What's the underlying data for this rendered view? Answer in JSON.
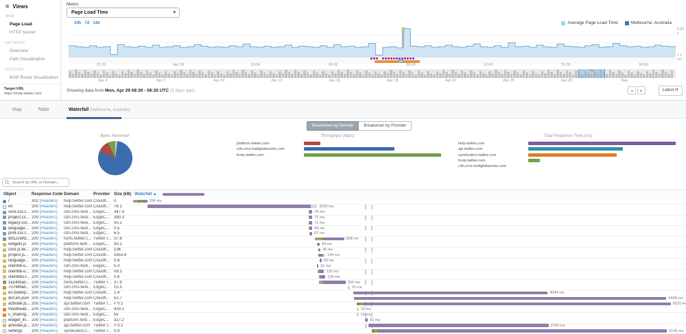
{
  "sidebar": {
    "title": "Views",
    "sections": [
      {
        "label": "WEB",
        "items": [
          {
            "label": "Page Load",
            "active": true
          },
          {
            "label": "HTTP Server",
            "active": false
          }
        ]
      },
      {
        "label": "NETWORK",
        "items": [
          {
            "label": "Overview",
            "active": false
          },
          {
            "label": "Path Visualization",
            "active": false
          }
        ]
      },
      {
        "label": "ROUTING",
        "items": [
          {
            "label": "BGP Route Visualization",
            "active": false
          }
        ]
      }
    ],
    "target_url_label": "Target URL",
    "target_url": "https://help.twitter.com"
  },
  "metric": {
    "label": "Metric",
    "value": "Page Load Time"
  },
  "time_ranges": [
    "24h",
    "7d",
    "14d"
  ],
  "legend": [
    {
      "label": "Average Page Load Time",
      "color": "#a9d1ec"
    },
    {
      "label": "Melbourne, Australia",
      "color": "#2f7dbe"
    }
  ],
  "timeline": {
    "y_max_label": "4.96 s",
    "y_min_label": "< 1 ms",
    "max_value": 4.96,
    "values": [
      1.9,
      1.7,
      1.6,
      1.9,
      1.6,
      1.7,
      0.3,
      2.1,
      1.7,
      1.6,
      1.8,
      1.6,
      2.0,
      1.6,
      1.7,
      1.9,
      1.6,
      1.7,
      2.1,
      1.8,
      1.6,
      1.7,
      1.6,
      1.9,
      1.7,
      2.2,
      1.7,
      1.6,
      1.8,
      1.6,
      1.7,
      2.0,
      1.6,
      1.8,
      1.7,
      1.6,
      1.9,
      1.6,
      2.1,
      1.7,
      1.8,
      1.6,
      1.7,
      2.3,
      0.2,
      1.6,
      1.7,
      1.5,
      4.96,
      1.8,
      1.7,
      1.9,
      1.6,
      1.7,
      2.0,
      1.7,
      1.6,
      1.8,
      2.2,
      1.7,
      1.6,
      1.9,
      1.6,
      2.4,
      1.7,
      1.8,
      1.6,
      2.0,
      1.7,
      1.6,
      2.2,
      1.8,
      1.7,
      1.6,
      1.9,
      2.1,
      1.6,
      1.7,
      2.3,
      1.9,
      1.7,
      1.8,
      1.6,
      1.7,
      2.0,
      1.8,
      1.7,
      1.9
    ],
    "spike_index": 48,
    "x_ticks": [
      {
        "label": "21:00",
        "f": 0.054
      },
      {
        "label": "Apr 29",
        "f": 0.181
      },
      {
        "label": "03:00",
        "f": 0.308
      },
      {
        "label": "06:00",
        "f": 0.436
      },
      {
        "label": "09:00",
        "f": 0.564
      },
      {
        "label": "12:00",
        "f": 0.691
      },
      {
        "label": "15:00",
        "f": 0.819
      },
      {
        "label": "18:00",
        "f": 0.947
      }
    ]
  },
  "overview": {
    "x_ticks": [
      {
        "label": "Apr 4",
        "f": 0.0565
      },
      {
        "label": "Apr 7",
        "f": 0.152
      },
      {
        "label": "Apr 10",
        "f": 0.2475
      },
      {
        "label": "Apr 13",
        "f": 0.3429
      },
      {
        "label": "Apr 16",
        "f": 0.4384
      },
      {
        "label": "Apr 19",
        "f": 0.5339
      },
      {
        "label": "Apr 22",
        "f": 0.6294
      },
      {
        "label": "Apr 25",
        "f": 0.7249
      },
      {
        "label": "Apr 28",
        "f": 0.8203
      },
      {
        "label": "May",
        "f": 0.9158
      }
    ],
    "selection": {
      "f": 0.8395,
      "w": 0.0418
    }
  },
  "status_line": {
    "prefix": "Showing data from ",
    "bold": "Mon, Apr 29 08:30 - 08:35 UTC",
    "suffix": " (3 days ago)"
  },
  "nav": {
    "prev": "◄",
    "next": "►",
    "latest": "Latest ⟳"
  },
  "tabs": [
    {
      "label": "Map",
      "suffix": "",
      "active": false,
      "x": 18
    },
    {
      "label": "Table",
      "suffix": "",
      "active": false,
      "x": 55
    },
    {
      "label": "Waterfall",
      "suffix": " (Melbourne, Australia)",
      "active": true,
      "x": 100
    }
  ],
  "breakdown": {
    "toggle": [
      {
        "label": "Breakdown by Domain",
        "active": true
      },
      {
        "label": "Breakdown by Provider",
        "active": false
      }
    ],
    "bytes": {
      "title": "Bytes Received",
      "slices": [
        {
          "pct": 2,
          "color": "#c9ced3"
        },
        {
          "pct": 80,
          "color": "#3c6cb0"
        },
        {
          "pct": 11,
          "color": "#b04a42"
        },
        {
          "pct": 7,
          "color": "#76a04a"
        }
      ]
    },
    "throughput": {
      "title": "Throughput (kbps)",
      "items": [
        {
          "label": "platform.twitter.com",
          "value": 12,
          "color": "#b04a42"
        },
        {
          "label": "cdn.cms-twdigitalassets.com",
          "value": 66,
          "color": "#3c6cb0"
        },
        {
          "label": "fonts.twitter.com",
          "value": 100,
          "color": "#76a04a"
        }
      ]
    },
    "response": {
      "title": "Total Response Time (ms)",
      "items": [
        {
          "label": "help.twitter.com",
          "value": 100,
          "color": "#7a5d9e"
        },
        {
          "label": "api.twitter.com",
          "value": 64,
          "color": "#3590b0"
        },
        {
          "label": "syndication.twitter.com",
          "value": 60,
          "color": "#de7f28"
        },
        {
          "label": "fonts.twitter.com",
          "value": 8,
          "color": "#76a04a"
        },
        {
          "label": "cdn.cms-twdigitalassets.com",
          "value": 0,
          "color": "#b04a42"
        }
      ]
    }
  },
  "search": {
    "placeholder": "Search by URL or Domain..."
  },
  "table": {
    "columns": [
      "Object",
      "Response Code",
      "Domain",
      "Provider",
      "Size (kB)",
      "Waterfall"
    ],
    "sort_arrow": "▲",
    "scale_total_ms": 11500,
    "dom_load_ms": 4823,
    "page_load_ms": 4951,
    "rows": [
      {
        "object": "/",
        "icon": "redirect",
        "code": "302",
        "headers": "[Headers]",
        "domain": "help.twitter.com",
        "provider": "Cloudfl...",
        "size": "0",
        "start": 0,
        "label": "296 ms",
        "phases": [
          [
            "tan",
            104
          ],
          [
            "green",
            44
          ],
          [
            "olive",
            30
          ],
          [
            "purple",
            118
          ]
        ]
      },
      {
        "object": "en",
        "icon": "doc",
        "code": "200",
        "headers": "[Headers]",
        "domain": "help.twitter.com",
        "provider": "Cloudfl...",
        "size": "76.1",
        "start": 300,
        "label": "3530 ms",
        "phases": [
          [
            "purple",
            3390
          ],
          [
            "light",
            140
          ]
        ]
      },
      {
        "object": "core.css.t...",
        "icon": "css",
        "code": "200",
        "headers": "[Headers]",
        "domain": "cdn.cms-twdi...",
        "provider": "EdgeC...",
        "size": "347.9",
        "start": 3653,
        "label": "75 ms",
        "phases": [
          [
            "tan",
            20
          ],
          [
            "purple",
            55
          ]
        ]
      },
      {
        "object": "project.cs...",
        "icon": "css",
        "code": "200",
        "headers": "[Headers]",
        "domain": "cdn.cms-twdi...",
        "provider": "EdgeC...",
        "size": "390.3",
        "start": 3653,
        "label": "75 ms",
        "phases": [
          [
            "tan",
            20
          ],
          [
            "purple",
            55
          ]
        ]
      },
      {
        "object": "legacy-col...",
        "icon": "css",
        "code": "200",
        "headers": "[Headers]",
        "domain": "cdn.cms-twdi...",
        "provider": "EdgeC...",
        "size": "50.1",
        "start": 3656,
        "label": "71 ms",
        "phases": [
          [
            "tan",
            18
          ],
          [
            "purple",
            53
          ]
        ]
      },
      {
        "object": "language...",
        "icon": "css",
        "code": "200",
        "headers": "[Headers]",
        "domain": "cdn.cms-twdi...",
        "provider": "EdgeC...",
        "size": "0.5",
        "start": 3658,
        "label": "69 ms",
        "phases": [
          [
            "tan",
            18
          ],
          [
            "purple",
            51
          ]
        ]
      },
      {
        "object": "print.css.t...",
        "icon": "css",
        "code": "200",
        "headers": "[Headers]",
        "domain": "cdn.cms-twdi...",
        "provider": "EdgeC...",
        "size": "6.5",
        "start": 3660,
        "label": "67 ms",
        "phases": [
          [
            "tan",
            17
          ],
          [
            "purple",
            50
          ]
        ]
      },
      {
        "object": "d9122wfd...",
        "icon": "font",
        "code": "200",
        "headers": "[Headers]",
        "domain": "fonts.twitter.com",
        "provider": "Twitter I...",
        "size": "37.8",
        "start": 3781,
        "label": "608 ms",
        "phases": [
          [
            "tan",
            100
          ],
          [
            "olive",
            60
          ],
          [
            "purple",
            448
          ]
        ]
      },
      {
        "object": "widgets.js",
        "icon": "js",
        "code": "200",
        "headers": "[Headers]",
        "domain": "platform.twitte...",
        "provider": "EdgeC...",
        "size": "93.1",
        "start": 3824,
        "label": "58 ms",
        "phases": [
          [
            "tan",
            15
          ],
          [
            "purple",
            43
          ]
        ]
      },
      {
        "object": "core.js.tw...",
        "icon": "js",
        "code": "200",
        "headers": "[Headers]",
        "domain": "help.twitter.com",
        "provider": "Cloudfl...",
        "size": "136",
        "start": 3852,
        "label": "46 ms",
        "phases": [
          [
            "purple",
            46
          ]
        ]
      },
      {
        "object": "project.js...",
        "icon": "js",
        "code": "200",
        "headers": "[Headers]",
        "domain": "help.twitter.com",
        "provider": "Cloudfl...",
        "size": "1653.6",
        "start": 3852,
        "label": "144 ms",
        "phases": [
          [
            "purple",
            100
          ],
          [
            "light",
            44
          ]
        ]
      },
      {
        "object": "language...",
        "icon": "js",
        "code": "200",
        "headers": "[Headers]",
        "domain": "help.twitter.com",
        "provider": "Cloudfl...",
        "size": "0.9",
        "start": 3881,
        "label": "40 ms",
        "phases": [
          [
            "purple",
            40
          ]
        ]
      },
      {
        "object": "clientlib-u...",
        "icon": "js",
        "code": "200",
        "headers": "[Headers]",
        "domain": "cdn.cms-twdi...",
        "provider": "EdgeC...",
        "size": "5.3",
        "start": 3824,
        "label": "31 ms",
        "phases": [
          [
            "purple",
            31
          ]
        ]
      },
      {
        "object": "clientlib-u...",
        "icon": "js",
        "code": "200",
        "headers": "[Headers]",
        "domain": "help.twitter.com",
        "provider": "Cloudfl...",
        "size": "59.1",
        "start": 3838,
        "label": "135 ms",
        "phases": [
          [
            "tan",
            30
          ],
          [
            "purple",
            105
          ]
        ]
      },
      {
        "object": "clientlibs-r...",
        "icon": "js",
        "code": "200",
        "headers": "[Headers]",
        "domain": "help.twitter.com",
        "provider": "Cloudfl...",
        "size": "0.6",
        "start": 3867,
        "label": "134 ms",
        "phases": [
          [
            "tan",
            30
          ],
          [
            "purple",
            104
          ]
        ]
      },
      {
        "object": "1a14dcac...",
        "icon": "font",
        "code": "200",
        "headers": "[Headers]",
        "domain": "fonts.twitter.com",
        "provider": "Twitter I...",
        "size": "37.9",
        "start": 3867,
        "label": "556 ms",
        "phases": [
          [
            "tan",
            80
          ],
          [
            "purple",
            476
          ]
        ]
      },
      {
        "object": "70744fad...",
        "icon": "img",
        "code": "200",
        "headers": "[Headers]",
        "domain": "cdn.cms-twdi...",
        "provider": "EdgeC...",
        "size": "15.1",
        "start": 4481,
        "label": "10 ms",
        "phases": [
          [
            "purple",
            10
          ]
        ]
      },
      {
        "object": "en.boilerp...",
        "icon": "js",
        "code": "200",
        "headers": "[Headers]",
        "domain": "help.twitter.com",
        "provider": "Cloudfl...",
        "size": "1.4",
        "start": 4581,
        "label": "4044 ms",
        "phases": [
          [
            "purple",
            4044
          ]
        ]
      },
      {
        "object": "dict.en.json",
        "icon": "js",
        "code": "200",
        "headers": "[Headers]",
        "domain": "help.twitter.com",
        "provider": "Cloudfl...",
        "size": "51.7",
        "start": 4595,
        "label": "6498 ms",
        "phases": [
          [
            "purple",
            6498
          ]
        ]
      },
      {
        "object": "activate.js...",
        "icon": "js",
        "code": "200",
        "headers": "[Headers]",
        "domain": "api.twitter.com",
        "provider": "Twitter I...",
        "size": "< 0.1",
        "start": 4652,
        "label": "6531 ms",
        "phases": [
          [
            "green",
            70
          ],
          [
            "olive",
            60
          ],
          [
            "purple",
            6401
          ]
        ]
      },
      {
        "object": "masthead...",
        "icon": "img",
        "code": "200",
        "headers": "[Headers]",
        "domain": "cdn.cms-twdi...",
        "provider": "EdgeC...",
        "size": "419.2",
        "start": 4666,
        "label": "15 ms",
        "phases": [
          [
            "purple",
            15
          ]
        ]
      },
      {
        "object": "s_sharing...",
        "icon": "img",
        "code": "200",
        "headers": "[Headers]",
        "domain": "cdn.cms-twdi...",
        "provider": "EdgeC...",
        "size": "55",
        "start": 4666,
        "label": "14 ms",
        "phases": [
          [
            "purple",
            14
          ]
        ]
      },
      {
        "object": "widget_ifr...",
        "icon": "doc",
        "code": "200",
        "headers": "[Headers]",
        "domain": "platform.twitte...",
        "provider": "EdgeC...",
        "size": "327.2",
        "start": 4823,
        "label": "61 ms",
        "phases": [
          [
            "tan",
            20
          ],
          [
            "purple",
            41
          ]
        ]
      },
      {
        "object": "activate.js...",
        "icon": "js",
        "code": "200",
        "headers": "[Headers]",
        "domain": "api.twitter.com",
        "provider": "Twitter I...",
        "size": "< 0.1",
        "start": 4895,
        "label": "3745 ms",
        "phases": [
          [
            "purple",
            3745
          ]
        ]
      },
      {
        "object": "settings",
        "icon": "doc",
        "code": "200",
        "headers": "[Headers]",
        "domain": "syndication.t...",
        "provider": "Twitter I...",
        "size": "0.9",
        "start": 4966,
        "label": "6136 ms",
        "phases": [
          [
            "green",
            60
          ],
          [
            "olive",
            50
          ],
          [
            "purple",
            6026
          ]
        ]
      }
    ]
  }
}
